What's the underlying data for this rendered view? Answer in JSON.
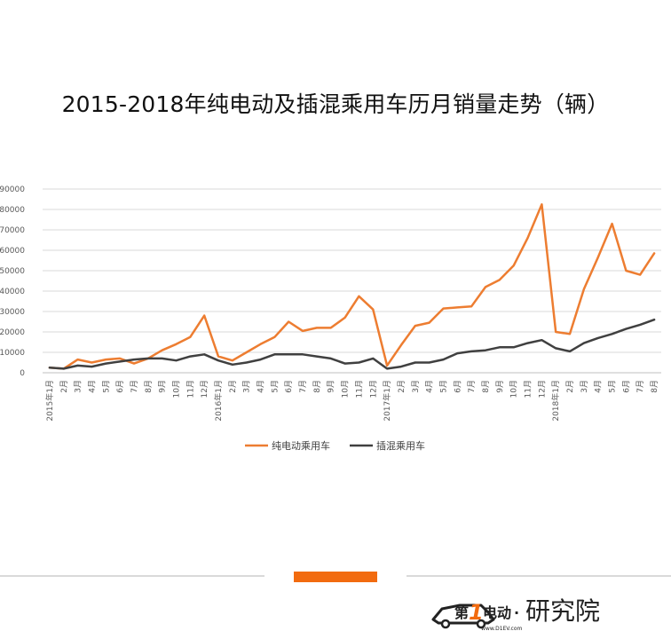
{
  "chart_data": {
    "type": "line",
    "title": "2015-2018年纯电动及插混乘用车历月销量走势（辆）",
    "xlabel": "",
    "ylabel": "",
    "ylim": [
      0,
      90000
    ],
    "y_ticks": [
      "0",
      "10000",
      "20000",
      "30000",
      "40000",
      "50000",
      "60000",
      "70000",
      "80000",
      "90000"
    ],
    "grid": true,
    "legend_position": "bottom",
    "categories": [
      "2015年1月",
      "2月",
      "3月",
      "4月",
      "5月",
      "6月",
      "7月",
      "8月",
      "9月",
      "10月",
      "11月",
      "12月",
      "2016年1月",
      "2月",
      "3月",
      "4月",
      "5月",
      "6月",
      "7月",
      "8月",
      "9月",
      "10月",
      "11月",
      "12月",
      "2017年1月",
      "2月",
      "3月",
      "4月",
      "5月",
      "6月",
      "7月",
      "8月",
      "9月",
      "10月",
      "11月",
      "12月",
      "2018年1月",
      "2月",
      "3月",
      "4月",
      "5月",
      "6月",
      "7月",
      "8月"
    ],
    "series": [
      {
        "name": "纯电动乘用车",
        "color": "#ed7d31",
        "values": [
          2500,
          2000,
          6500,
          5000,
          6500,
          7000,
          4500,
          7000,
          11000,
          14000,
          17500,
          28000,
          8000,
          6000,
          10000,
          14000,
          17500,
          25000,
          20500,
          22000,
          22000,
          27000,
          37500,
          31000,
          3500,
          13500,
          23000,
          24500,
          31500,
          32000,
          32500,
          42000,
          45500,
          52500,
          66000,
          82500,
          20000,
          19000,
          41000,
          56500,
          73000,
          50000,
          48000,
          58500
        ]
      },
      {
        "name": "插混乘用车",
        "color": "#404040",
        "values": [
          2500,
          2000,
          3500,
          3000,
          4500,
          5500,
          6500,
          7000,
          7000,
          6000,
          8000,
          9000,
          6000,
          4000,
          5000,
          6500,
          9000,
          9000,
          9000,
          8000,
          7000,
          4500,
          5000,
          7000,
          2000,
          3000,
          5000,
          5000,
          6500,
          9500,
          10500,
          11000,
          12500,
          12500,
          14500,
          16000,
          12000,
          10500,
          14500,
          17000,
          19000,
          21500,
          23500,
          26000
        ]
      }
    ]
  },
  "watermark": {
    "text": "第1电动·研究院",
    "url": "www.D1EV.com",
    "accent_color": "#f26b0f"
  }
}
